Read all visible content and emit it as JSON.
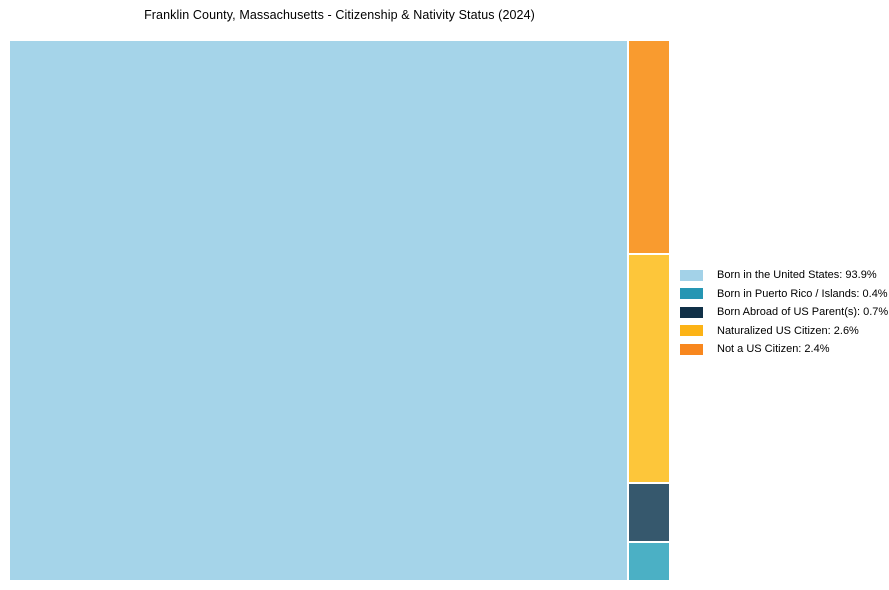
{
  "title": "Franklin County, Massachusetts - Citizenship & Nativity Status (2024)",
  "chart_data": {
    "type": "treemap",
    "title": "Franklin County, Massachusetts - Citizenship & Nativity Status (2024)",
    "categories": [
      "Born in the United States",
      "Born in Puerto Rico / Islands",
      "Born Abroad of US Parent(s)",
      "Naturalized US Citizen",
      "Not a US Citizen"
    ],
    "values": [
      93.9,
      0.4,
      0.7,
      2.6,
      2.4
    ],
    "unit": "%",
    "legend_position": "right-center",
    "layout": "slice-dice: dominant category fills left block, remaining categories stacked top-to-bottom in right column (Not a US Citizen, Naturalized US Citizen, Born Abroad of US Parent(s), Born in Puerto Rico / Islands)"
  },
  "blocks": {
    "born_us": {
      "label": "Born in the United States",
      "value_pct": 93.9,
      "color": "#A5D4E9"
    },
    "puerto_rico": {
      "label": "Born in Puerto Rico / Islands",
      "value_pct": 0.4,
      "color": "#4BB0C5"
    },
    "born_abroad": {
      "label": "Born Abroad of US Parent(s)",
      "value_pct": 0.7,
      "color": "#36586D"
    },
    "naturalized": {
      "label": "Naturalized US Citizen",
      "value_pct": 2.6,
      "color": "#FDC63A"
    },
    "not_citizen": {
      "label": "Not a US Citizen",
      "value_pct": 2.4,
      "color": "#F99B2F"
    }
  },
  "legend": {
    "items": [
      {
        "label": "Born in the United States: 93.9%",
        "swatch_color": "#A3D2E8"
      },
      {
        "label": "Born in Puerto Rico / Islands: 0.4%",
        "swatch_color": "#2596B3"
      },
      {
        "label": "Born Abroad of US Parent(s): 0.7%",
        "swatch_color": "#103047"
      },
      {
        "label": "Naturalized US Citizen: 2.6%",
        "swatch_color": "#FCB316"
      },
      {
        "label": "Not a US Citizen: 2.4%",
        "swatch_color": "#F8871E"
      }
    ]
  }
}
